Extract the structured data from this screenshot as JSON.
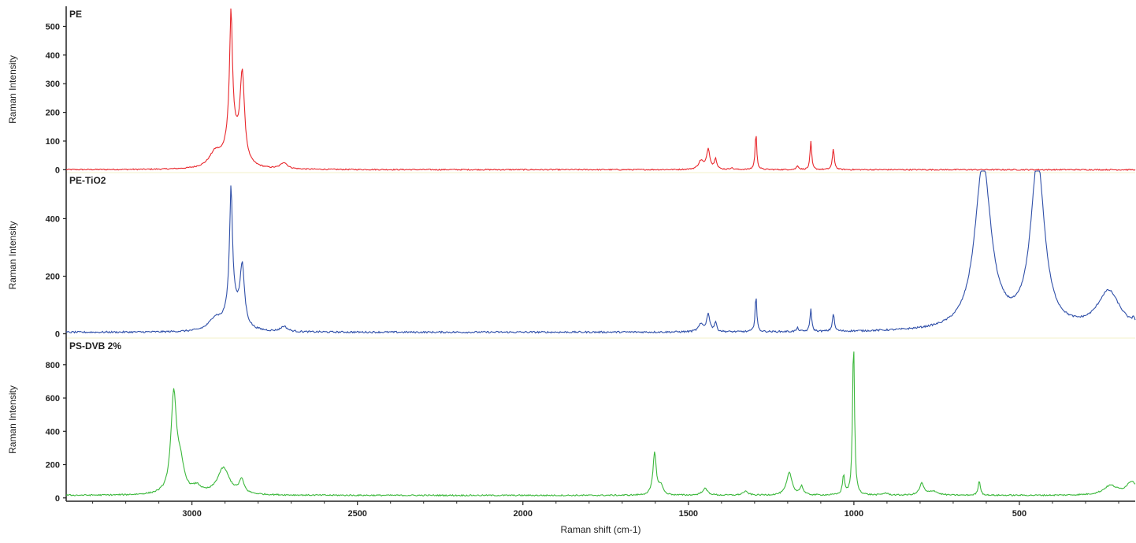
{
  "chart_data": {
    "type": "line",
    "xlabel": "Raman shift (cm-1)",
    "xlim": [
      3380,
      150
    ],
    "x_reversed": true,
    "x_ticks": [
      3000,
      2500,
      2000,
      1500,
      1000,
      500
    ],
    "x_tick_labels": [
      "3000",
      "2500",
      "2000",
      "1500",
      "1000",
      "500"
    ],
    "panels": [
      {
        "label": "PE",
        "ylabel": "Raman Intensity",
        "ylim": [
          -10,
          570
        ],
        "y_ticks": [
          0,
          100,
          200,
          300,
          400,
          500
        ],
        "y_tick_labels": [
          "0",
          "100",
          "200",
          "300",
          "400",
          "500"
        ],
        "color": "#e8262b",
        "baseline": 0,
        "noise": 2,
        "peaks": [
          {
            "x": 2930,
            "h": 50,
            "w": 22
          },
          {
            "x": 2885,
            "h": 80,
            "w": 18
          },
          {
            "x": 2882,
            "h": 420,
            "w": 5
          },
          {
            "x": 2848,
            "h": 300,
            "w": 8
          },
          {
            "x": 2870,
            "h": 60,
            "w": 20
          },
          {
            "x": 2722,
            "h": 22,
            "w": 12
          },
          {
            "x": 1462,
            "h": 30,
            "w": 9
          },
          {
            "x": 1440,
            "h": 70,
            "w": 6
          },
          {
            "x": 1418,
            "h": 38,
            "w": 4
          },
          {
            "x": 1370,
            "h": 6,
            "w": 5
          },
          {
            "x": 1296,
            "h": 128,
            "w": 3
          },
          {
            "x": 1170,
            "h": 14,
            "w": 4
          },
          {
            "x": 1130,
            "h": 98,
            "w": 3
          },
          {
            "x": 1062,
            "h": 72,
            "w": 3.5
          }
        ]
      },
      {
        "label": "PE-TiO2",
        "ylabel": "Raman Intensity",
        "ylim": [
          -15,
          560
        ],
        "y_ticks": [
          0,
          200,
          400
        ],
        "y_tick_labels": [
          "0",
          "200",
          "400"
        ],
        "color": "#2f4fa8",
        "baseline": 5,
        "noise": 3,
        "peaks": [
          {
            "x": 2930,
            "h": 40,
            "w": 22
          },
          {
            "x": 2885,
            "h": 60,
            "w": 18
          },
          {
            "x": 2882,
            "h": 400,
            "w": 5
          },
          {
            "x": 2848,
            "h": 200,
            "w": 8
          },
          {
            "x": 2870,
            "h": 50,
            "w": 20
          },
          {
            "x": 2722,
            "h": 18,
            "w": 12
          },
          {
            "x": 1462,
            "h": 25,
            "w": 9
          },
          {
            "x": 1440,
            "h": 60,
            "w": 6
          },
          {
            "x": 1418,
            "h": 32,
            "w": 4
          },
          {
            "x": 1296,
            "h": 128,
            "w": 3
          },
          {
            "x": 1170,
            "h": 12,
            "w": 4
          },
          {
            "x": 1130,
            "h": 80,
            "w": 3
          },
          {
            "x": 1062,
            "h": 62,
            "w": 3.5
          },
          {
            "x": 610,
            "h": 575,
            "w": 30
          },
          {
            "x": 445,
            "h": 575,
            "w": 26
          },
          {
            "x": 230,
            "h": 135,
            "w": 42
          },
          {
            "x": 155,
            "h": 20,
            "w": 4
          }
        ]
      },
      {
        "label": "PS-DVB 2%",
        "ylabel": "Raman Intensity",
        "ylim": [
          -20,
          960
        ],
        "y_ticks": [
          0,
          200,
          400,
          600,
          800
        ],
        "y_tick_labels": [
          "0",
          "200",
          "400",
          "600",
          "800"
        ],
        "color": "#3cb83c",
        "baseline": 15,
        "noise": 4,
        "peaks": [
          {
            "x": 3055,
            "h": 585,
            "w": 10
          },
          {
            "x": 3035,
            "h": 160,
            "w": 14
          },
          {
            "x": 2985,
            "h": 40,
            "w": 15
          },
          {
            "x": 2905,
            "h": 160,
            "w": 22
          },
          {
            "x": 2850,
            "h": 80,
            "w": 9
          },
          {
            "x": 1602,
            "h": 255,
            "w": 6
          },
          {
            "x": 1583,
            "h": 55,
            "w": 7
          },
          {
            "x": 1450,
            "h": 40,
            "w": 10
          },
          {
            "x": 1328,
            "h": 22,
            "w": 10
          },
          {
            "x": 1195,
            "h": 135,
            "w": 10
          },
          {
            "x": 1158,
            "h": 50,
            "w": 6
          },
          {
            "x": 1031,
            "h": 115,
            "w": 4
          },
          {
            "x": 1001,
            "h": 930,
            "w": 3.5
          },
          {
            "x": 905,
            "h": 12,
            "w": 10
          },
          {
            "x": 795,
            "h": 70,
            "w": 8
          },
          {
            "x": 760,
            "h": 25,
            "w": 15
          },
          {
            "x": 621,
            "h": 88,
            "w": 4
          },
          {
            "x": 225,
            "h": 55,
            "w": 25
          },
          {
            "x": 160,
            "h": 80,
            "w": 20
          }
        ]
      }
    ]
  }
}
